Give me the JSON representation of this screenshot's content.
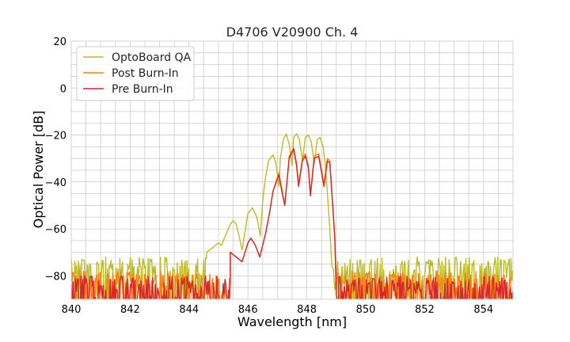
{
  "chart_data": {
    "type": "line",
    "title": "D4706 V20900 Ch. 4",
    "xlabel": "Wavelength [nm]",
    "ylabel": "Optical Power [dB]",
    "xlim": [
      840,
      855
    ],
    "ylim": [
      -90,
      20
    ],
    "xticks": [
      840,
      842,
      844,
      846,
      848,
      850,
      852,
      854
    ],
    "yticks": [
      20,
      0,
      -20,
      -40,
      -60,
      -80
    ],
    "xtick_labels": [
      "840",
      "842",
      "844",
      "846",
      "848",
      "850",
      "852",
      "854"
    ],
    "ytick_labels": [
      "20",
      "0",
      "−20",
      "−40",
      "−60",
      "−80"
    ],
    "grid": true,
    "legend_position": "top-left",
    "series": [
      {
        "name": "OptoBoard QA",
        "color": "#bcbd22",
        "noise_floor": -74,
        "points": [
          [
            844.6,
            -70
          ],
          [
            844.8,
            -68
          ],
          [
            845.0,
            -66
          ],
          [
            845.1,
            -67
          ],
          [
            845.2,
            -64
          ],
          [
            845.4,
            -58
          ],
          [
            845.5,
            -56.5
          ],
          [
            845.6,
            -58
          ],
          [
            845.7,
            -63
          ],
          [
            845.8,
            -69
          ],
          [
            845.9,
            -61
          ],
          [
            846.0,
            -53.5
          ],
          [
            846.15,
            -51
          ],
          [
            846.3,
            -55
          ],
          [
            846.42,
            -63
          ],
          [
            846.5,
            -48
          ],
          [
            846.6,
            -38
          ],
          [
            846.7,
            -31
          ],
          [
            846.85,
            -28.5
          ],
          [
            846.95,
            -32
          ],
          [
            847.05,
            -42
          ],
          [
            847.1,
            -30
          ],
          [
            847.2,
            -22
          ],
          [
            847.3,
            -19.5
          ],
          [
            847.4,
            -24
          ],
          [
            847.5,
            -33
          ],
          [
            847.55,
            -21
          ],
          [
            847.65,
            -19.5
          ],
          [
            847.75,
            -22
          ],
          [
            847.85,
            -31
          ],
          [
            847.95,
            -21
          ],
          [
            848.05,
            -20
          ],
          [
            848.15,
            -23
          ],
          [
            848.25,
            -32
          ],
          [
            848.35,
            -22
          ],
          [
            848.45,
            -21
          ],
          [
            848.55,
            -25
          ],
          [
            848.62,
            -32
          ],
          [
            848.7,
            -45
          ],
          [
            848.78,
            -60
          ],
          [
            848.85,
            -76
          ],
          [
            848.9,
            -77
          ],
          [
            848.95,
            -86
          ],
          [
            849.05,
            -74
          ]
        ]
      },
      {
        "name": "Post Burn-In",
        "color": "#ff7f0e",
        "noise_floor": -80,
        "points": [
          [
            845.4,
            -70
          ],
          [
            845.6,
            -72
          ],
          [
            845.8,
            -74
          ],
          [
            846.0,
            -66
          ],
          [
            846.1,
            -64
          ],
          [
            846.25,
            -67
          ],
          [
            846.4,
            -72
          ],
          [
            846.6,
            -62
          ],
          [
            846.75,
            -52
          ],
          [
            846.85,
            -44
          ],
          [
            847.05,
            -36
          ],
          [
            847.15,
            -43
          ],
          [
            847.25,
            -50
          ],
          [
            847.4,
            -29
          ],
          [
            847.55,
            -25.5
          ],
          [
            847.65,
            -32
          ],
          [
            847.72,
            -41
          ],
          [
            847.85,
            -30
          ],
          [
            847.95,
            -28
          ],
          [
            848.05,
            -33
          ],
          [
            848.12,
            -45
          ],
          [
            848.25,
            -29
          ],
          [
            848.4,
            -28
          ],
          [
            848.5,
            -35
          ],
          [
            848.58,
            -41
          ],
          [
            848.7,
            -30
          ],
          [
            848.78,
            -31
          ],
          [
            848.85,
            -44
          ],
          [
            848.95,
            -63
          ],
          [
            849.0,
            -88
          ]
        ]
      },
      {
        "name": "Pre Burn-In",
        "color": "#d62728",
        "noise_floor": -82,
        "points": [
          [
            845.4,
            -70
          ],
          [
            845.6,
            -72
          ],
          [
            845.8,
            -74
          ],
          [
            846.0,
            -66
          ],
          [
            846.1,
            -64
          ],
          [
            846.25,
            -67
          ],
          [
            846.4,
            -72
          ],
          [
            846.6,
            -62
          ],
          [
            846.75,
            -52
          ],
          [
            846.85,
            -44
          ],
          [
            847.05,
            -37
          ],
          [
            847.15,
            -44
          ],
          [
            847.25,
            -50
          ],
          [
            847.4,
            -30
          ],
          [
            847.55,
            -26
          ],
          [
            847.65,
            -33
          ],
          [
            847.72,
            -42
          ],
          [
            847.85,
            -31
          ],
          [
            847.95,
            -29
          ],
          [
            848.05,
            -34
          ],
          [
            848.12,
            -46
          ],
          [
            848.25,
            -30
          ],
          [
            848.4,
            -29
          ],
          [
            848.5,
            -36
          ],
          [
            848.58,
            -42
          ],
          [
            848.7,
            -31
          ],
          [
            848.78,
            -32
          ],
          [
            848.85,
            -45
          ],
          [
            848.95,
            -64
          ],
          [
            849.0,
            -88
          ]
        ]
      }
    ]
  }
}
